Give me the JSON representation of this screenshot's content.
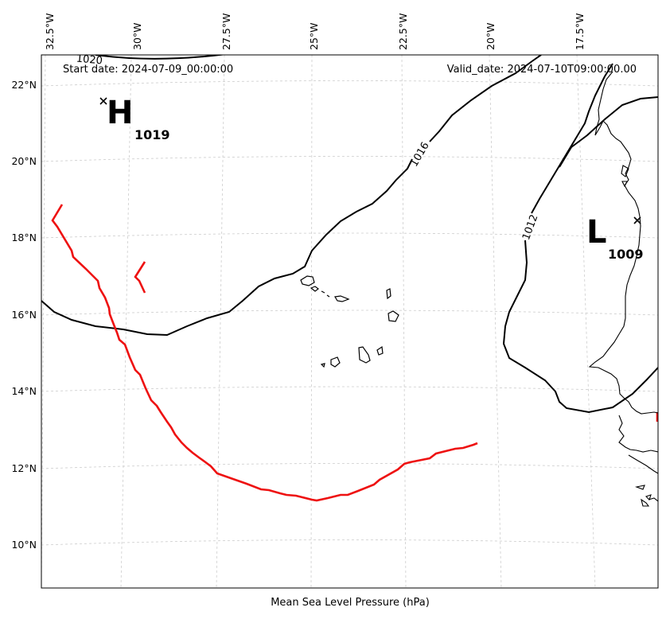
{
  "map": {
    "start_date": "Start date: 2024-07-09_00:00:00",
    "valid_date": "Valid_date: 2024-07-10T09:00:00.00",
    "footer_label": "Mean Sea Level Pressure (hPa)",
    "lon_ticks": [
      "32.5°W",
      "30°W",
      "27.5°W",
      "25°W",
      "22.5°W",
      "20°W",
      "17.5°W"
    ],
    "lat_ticks": [
      "22°N",
      "18°N",
      "20°N",
      "16°N",
      "14°N",
      "12°N",
      "10°N"
    ],
    "high": {
      "symbol": "H",
      "value": "1019"
    },
    "low": {
      "symbol": "L",
      "value": "1009"
    },
    "contour_labels": [
      "1016",
      "1012",
      "1020"
    ],
    "colors": {
      "isobar": "#000000",
      "track": "#ee1111",
      "grid": "#cccccc"
    }
  }
}
